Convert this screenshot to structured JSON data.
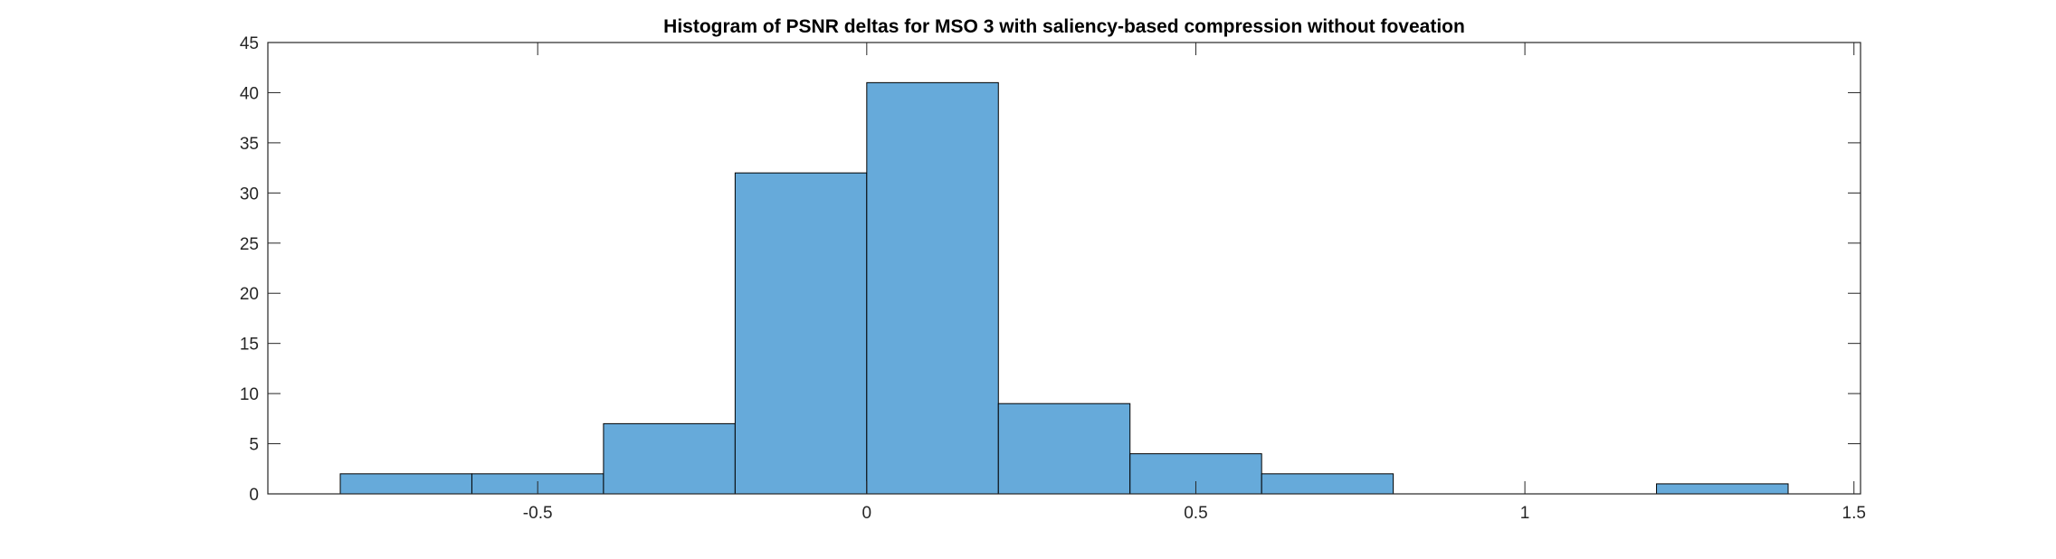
{
  "chart_data": {
    "type": "histogram",
    "title": "Histogram of PSNR deltas for MSO 3 with saliency-based compression without foveation",
    "xlabel": "",
    "ylabel": "",
    "bin_edges": [
      -0.8,
      -0.6,
      -0.4,
      -0.2,
      0.0,
      0.2,
      0.4,
      0.6,
      0.8,
      1.0,
      1.2,
      1.4
    ],
    "counts": [
      2,
      2,
      7,
      32,
      41,
      9,
      4,
      2,
      0,
      0,
      1
    ],
    "xlim": [
      -0.91,
      1.51
    ],
    "ylim": [
      0,
      45
    ],
    "xticks": [
      -0.5,
      0,
      0.5,
      1,
      1.5
    ],
    "xtick_labels": [
      "-0.5",
      "0",
      "0.5",
      "1",
      "1.5"
    ],
    "yticks": [
      0,
      5,
      10,
      15,
      20,
      25,
      30,
      35,
      40,
      45
    ],
    "ytick_labels": [
      "0",
      "5",
      "10",
      "15",
      "20",
      "25",
      "30",
      "35",
      "40",
      "45"
    ],
    "bar_color": "#66AADA",
    "edge_color": "#000000",
    "grid": false,
    "legend": false
  }
}
